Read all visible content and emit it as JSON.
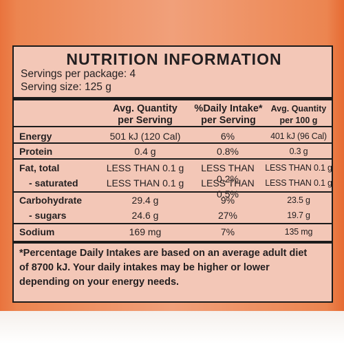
{
  "panel": {
    "title": "NUTRITION INFORMATION",
    "servings_per_package": "Servings per package: 4",
    "serving_size": "Serving size: 125 g"
  },
  "headers": {
    "col1_line1": "Avg. Quantity",
    "col1_line2": "per Serving",
    "col2_line1": "%Daily Intake*",
    "col2_line2": "per Serving",
    "col3_line1": "Avg. Quantity",
    "col3_line2": "per 100 g"
  },
  "rows": [
    {
      "label": "Energy",
      "per_serving": "501 kJ (120 Cal)",
      "daily_intake": "6%",
      "per_100g": "401 kJ (96 Cal)"
    },
    {
      "label": "Protein",
      "per_serving": "0.4 g",
      "daily_intake": "0.8%",
      "per_100g": "0.3 g"
    },
    {
      "label": "Fat, total",
      "per_serving": "LESS THAN 0.1 g",
      "daily_intake": "LESS THAN 0.2%",
      "per_100g": "LESS THAN 0.1 g"
    },
    {
      "label": "- saturated",
      "per_serving": "LESS THAN 0.1 g",
      "daily_intake": "LESS THAN 0.5%",
      "per_100g": "LESS THAN 0.1 g"
    },
    {
      "label": "Carbohydrate",
      "per_serving": "29.4 g",
      "daily_intake": "9%",
      "per_100g": "23.5 g"
    },
    {
      "label": "- sugars",
      "per_serving": "24.6 g",
      "daily_intake": "27%",
      "per_100g": "19.7 g"
    },
    {
      "label": "Sodium",
      "per_serving": "169 mg",
      "daily_intake": "7%",
      "per_100g": "135 mg"
    }
  ],
  "footnote": {
    "line1": "*Percentage Daily Intakes are based on an average adult diet",
    "line2": "of 8700 kJ. Your daily intakes may be higher or lower",
    "line3": "depending on your energy needs."
  },
  "colors": {
    "panel_background": "#f3c7b7",
    "band_orange": "#ec8550",
    "rule_color": "#1b1b1b"
  }
}
